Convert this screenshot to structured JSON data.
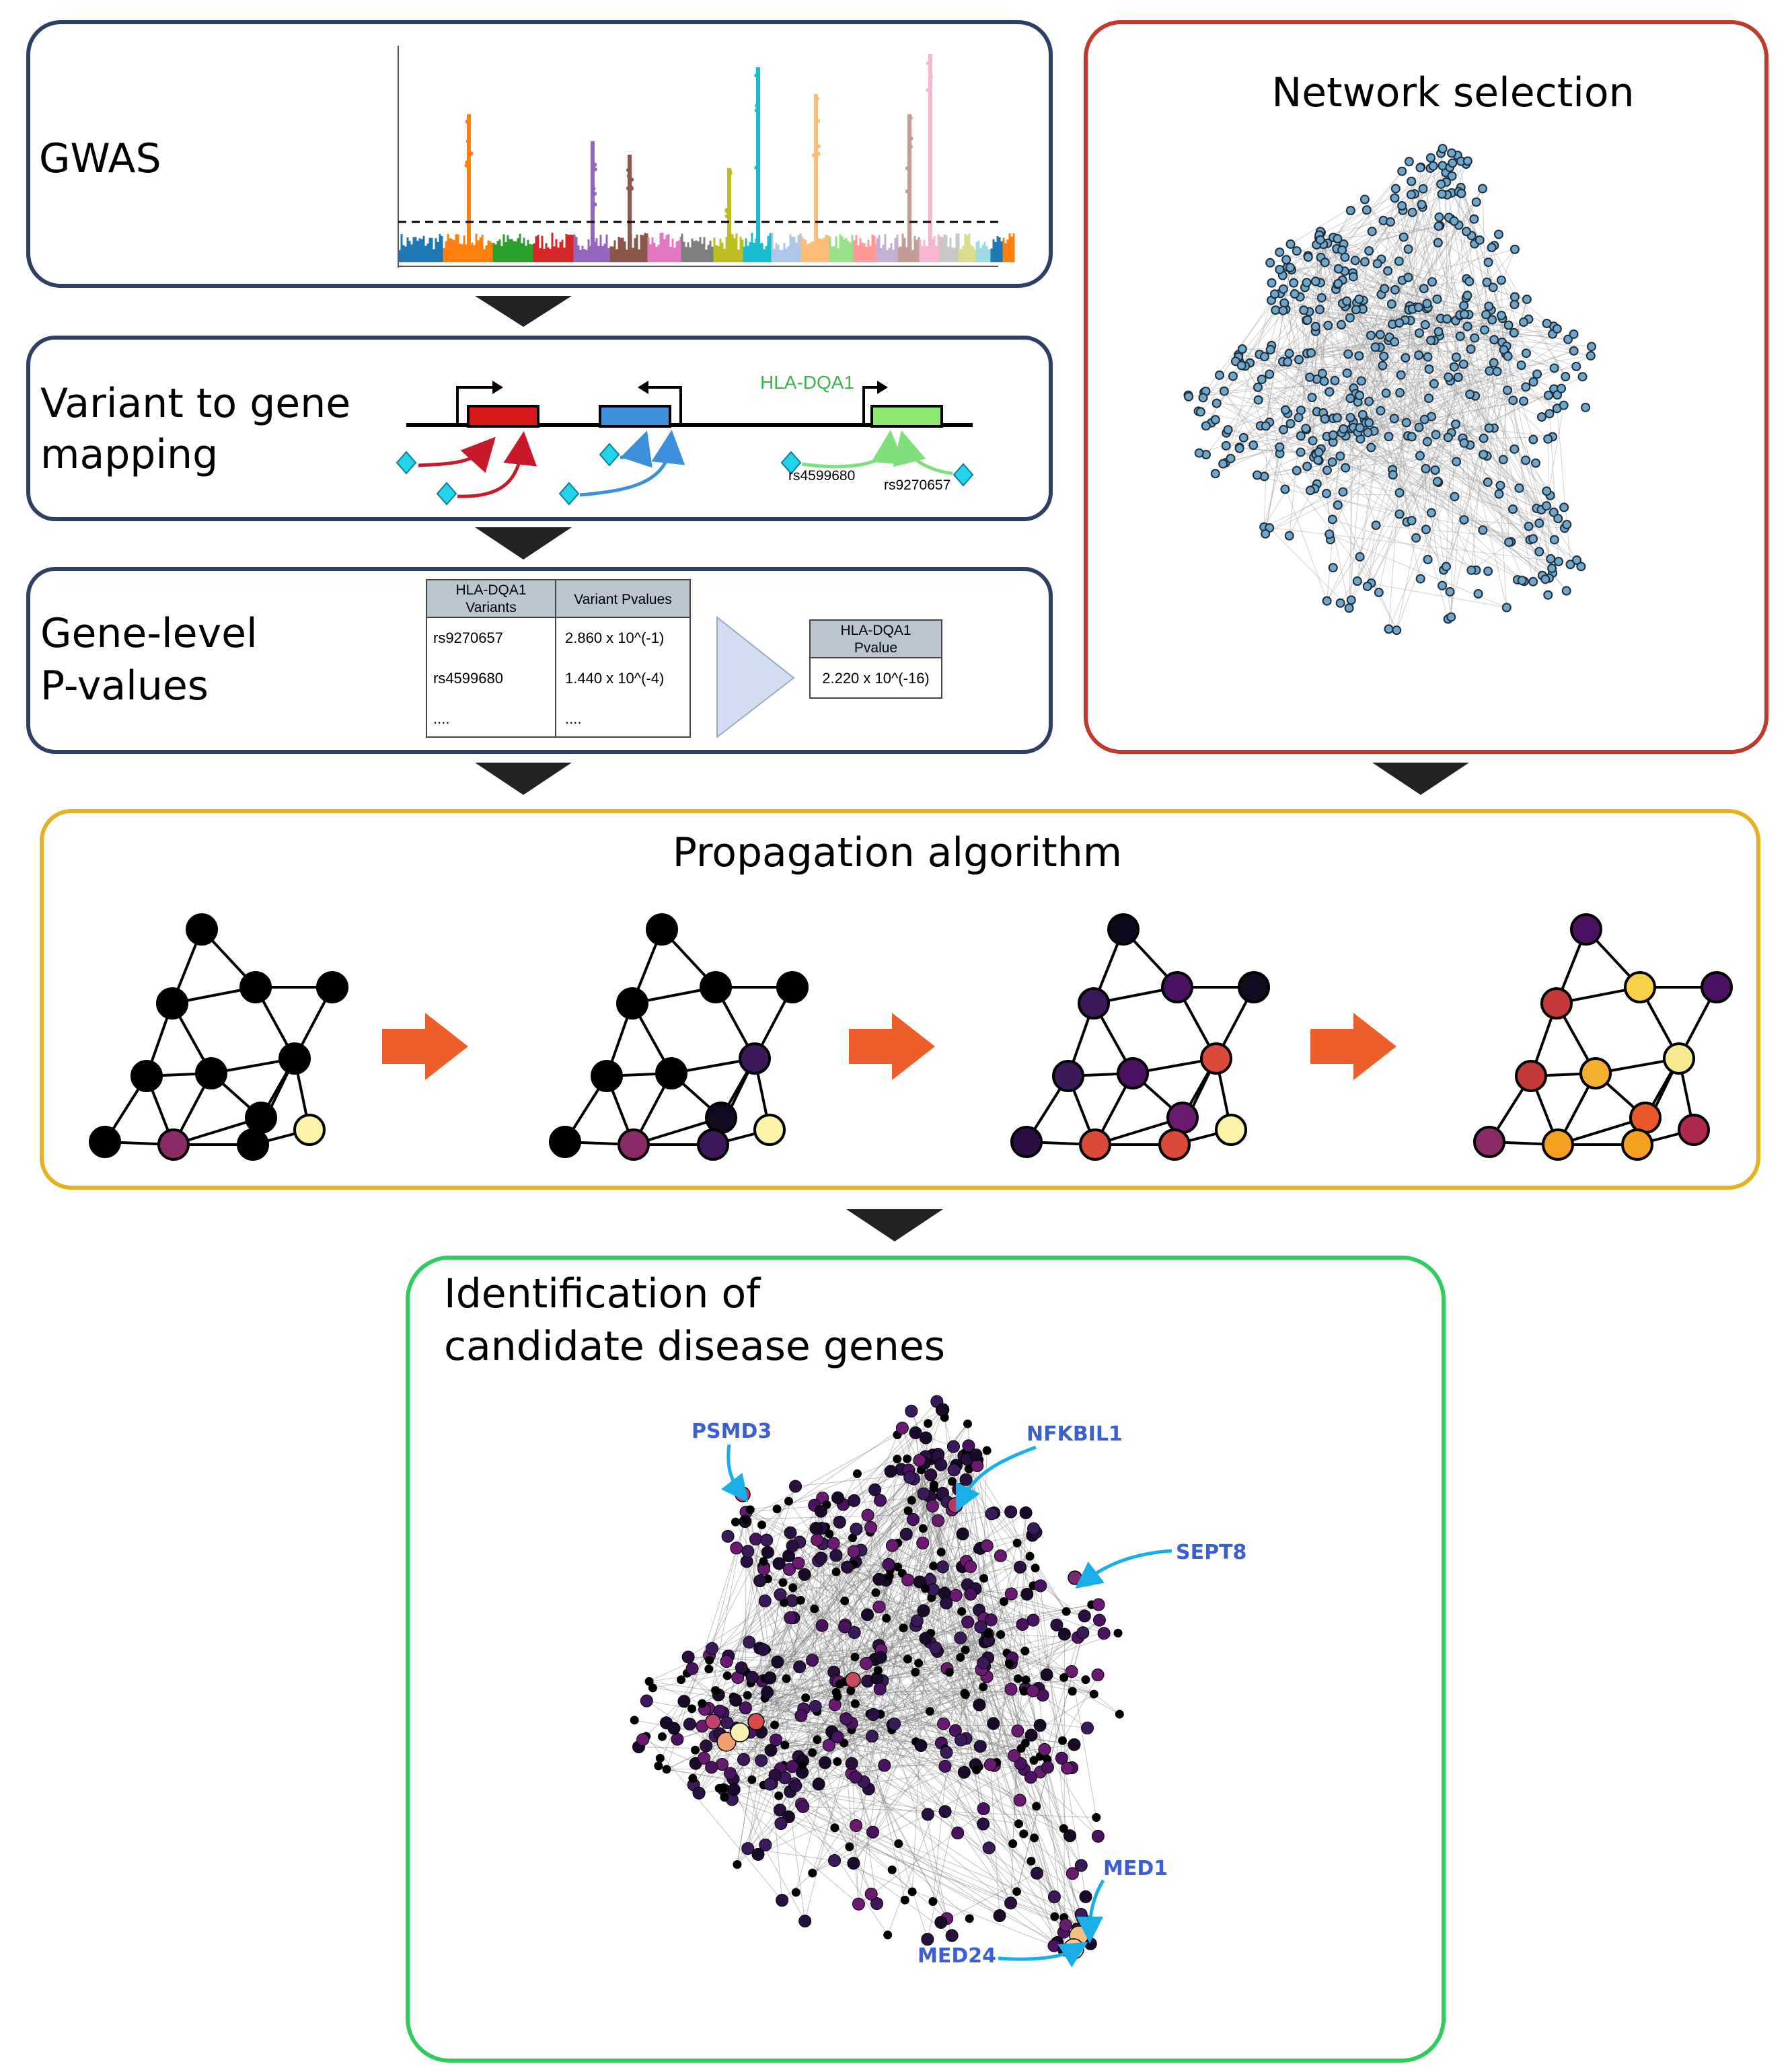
{
  "panels": {
    "gwas": {
      "title": "GWAS"
    },
    "mapping": {
      "title_line1": "Variant to gene",
      "title_line2": "mapping",
      "gene_label": "HLA-DQA1",
      "variant_1": "rs4599680",
      "variant_2": "rs9270657"
    },
    "gene_level": {
      "title_line1": "Gene-level",
      "title_line2": "P-values",
      "variants_table": {
        "header_col1_line1": "HLA-DQA1",
        "header_col1_line2": "Variants",
        "header_col2": "Variant Pvalues",
        "rows": [
          {
            "variant": "rs9270657",
            "pvalue": "2.860 x 10^(-1)"
          },
          {
            "variant": "rs4599680",
            "pvalue": "1.440 x 10^(-4)"
          },
          {
            "variant": "....",
            "pvalue": "...."
          }
        ]
      },
      "result_table": {
        "header_line1": "HLA-DQA1",
        "header_line2": "Pvalue",
        "value": "2.220 x 10^(-16)"
      }
    },
    "network": {
      "title": "Network selection"
    },
    "propagation": {
      "title": "Propagation algorithm"
    },
    "identification": {
      "title_line1": "Identification of",
      "title_line2": "candidate disease genes",
      "genes": [
        "PSMD3",
        "NFKBIL1",
        "SEPT8",
        "MED1",
        "MED24"
      ]
    }
  },
  "colors": {
    "gwas_border": "#2e3f66",
    "network_border": "#c0392b",
    "propagation_border": "#e6b020",
    "identification_border": "#2ecc5a",
    "arrow_orange": "#ec5f2a",
    "gene_label_blue": "#3a5fd0",
    "network_node": "#6fa6cc"
  }
}
